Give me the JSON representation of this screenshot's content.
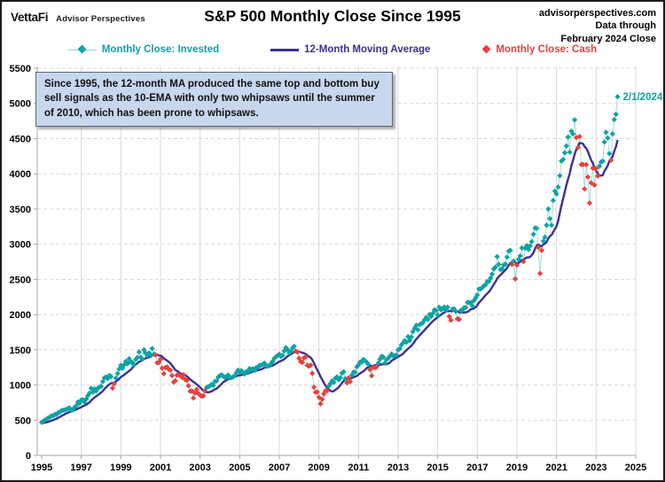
{
  "header": {
    "logo_primary": "VettaFi",
    "logo_secondary": "Advisor Perspectives",
    "title": "S&P 500 Monthly Close Since 1995",
    "source_lines": [
      "advisorperspectives.com",
      "Data through",
      "February 2024 Close"
    ]
  },
  "legend": [
    {
      "label": "Monthly Close: Invested",
      "color": "#0FA3A3",
      "marker": "diamond-line"
    },
    {
      "label": "12-Month Moving Average",
      "color": "#3B3192",
      "marker": "line"
    },
    {
      "label": "Monthly Close: Cash",
      "color": "#E8413C",
      "marker": "diamond"
    }
  ],
  "annotation": {
    "text": "Since 1995, the 12-month MA produced the same top and bottom buy sell signals as the 10-EMA with only two whipsaws until the summer of 2010, which has been prone to whipsaws."
  },
  "callout": {
    "label": "2/1/2024",
    "month": "2024-02",
    "value": 5096
  },
  "chart_data": {
    "type": "line",
    "title": "S&P 500 Monthly Close Since 1995",
    "xlabel": "",
    "ylabel": "",
    "xlim": [
      1995,
      2025
    ],
    "ylim": [
      0,
      5500
    ],
    "grid": true,
    "legend_position": "top",
    "x_ticks": [
      1995,
      1997,
      1999,
      2001,
      2003,
      2005,
      2007,
      2009,
      2011,
      2013,
      2015,
      2017,
      2019,
      2021,
      2023,
      2025
    ],
    "y_ticks": [
      0,
      500,
      1000,
      1500,
      2000,
      2500,
      3000,
      3500,
      4000,
      4500,
      5000,
      5500
    ],
    "series": [
      {
        "name": "Monthly Close: Invested",
        "type": "scatter-line",
        "marker": "diamond"
      },
      {
        "name": "12-Month Moving Average",
        "type": "line"
      },
      {
        "name": "Monthly Close: Cash",
        "type": "scatter",
        "marker": "diamond"
      }
    ],
    "start_year": 1995,
    "start_month": 1,
    "closes_by_year": {
      "1995": [
        470,
        487,
        501,
        515,
        533,
        545,
        562,
        562,
        584,
        582,
        605,
        616
      ],
      "1996": [
        636,
        640,
        646,
        654,
        669,
        671,
        640,
        652,
        687,
        705,
        757,
        741
      ],
      "1997": [
        786,
        791,
        757,
        801,
        848,
        885,
        954,
        899,
        947,
        915,
        955,
        970
      ],
      "1998": [
        980,
        1049,
        1102,
        1112,
        1091,
        1134,
        1121,
        957,
        1017,
        1099,
        1164,
        1229
      ],
      "1999": [
        1280,
        1238,
        1286,
        1335,
        1302,
        1373,
        1329,
        1320,
        1283,
        1363,
        1389,
        1469
      ],
      "2000": [
        1394,
        1366,
        1499,
        1452,
        1421,
        1455,
        1431,
        1518,
        1437,
        1429,
        1315,
        1320
      ],
      "2001": [
        1366,
        1240,
        1160,
        1249,
        1256,
        1224,
        1211,
        1134,
        1041,
        1060,
        1139,
        1148
      ],
      "2002": [
        1130,
        1107,
        1147,
        1077,
        1067,
        990,
        912,
        916,
        815,
        886,
        936,
        880
      ],
      "2003": [
        856,
        841,
        848,
        917,
        964,
        975,
        990,
        1008,
        996,
        1051,
        1058,
        1112
      ],
      "2004": [
        1131,
        1145,
        1126,
        1107,
        1121,
        1141,
        1102,
        1104,
        1115,
        1130,
        1174,
        1212
      ],
      "2005": [
        1181,
        1204,
        1181,
        1157,
        1192,
        1191,
        1234,
        1220,
        1229,
        1207,
        1249,
        1248
      ],
      "2006": [
        1280,
        1281,
        1295,
        1311,
        1270,
        1270,
        1277,
        1304,
        1336,
        1378,
        1401,
        1418
      ],
      "2007": [
        1438,
        1407,
        1421,
        1482,
        1531,
        1503,
        1455,
        1474,
        1527,
        1549,
        1481,
        1468
      ],
      "2008": [
        1379,
        1331,
        1323,
        1386,
        1400,
        1280,
        1267,
        1283,
        1166,
        969,
        896,
        903
      ],
      "2009": [
        826,
        735,
        798,
        873,
        919,
        919,
        987,
        1021,
        1057,
        1036,
        1096,
        1115
      ],
      "2010": [
        1074,
        1104,
        1169,
        1187,
        1089,
        1031,
        1102,
        1049,
        1141,
        1183,
        1181,
        1258
      ],
      "2011": [
        1286,
        1327,
        1326,
        1364,
        1345,
        1321,
        1292,
        1219,
        1131,
        1253,
        1247,
        1258
      ],
      "2012": [
        1312,
        1366,
        1408,
        1398,
        1310,
        1362,
        1379,
        1407,
        1441,
        1412,
        1416,
        1426
      ],
      "2013": [
        1498,
        1515,
        1569,
        1598,
        1631,
        1606,
        1686,
        1633,
        1682,
        1757,
        1806,
        1848
      ],
      "2014": [
        1783,
        1859,
        1872,
        1884,
        1924,
        1960,
        1931,
        2003,
        1972,
        2018,
        2068,
        2059
      ],
      "2015": [
        1995,
        2105,
        2068,
        2086,
        2107,
        2063,
        2104,
        1972,
        1920,
        2079,
        2080,
        2044
      ],
      "2016": [
        1940,
        1932,
        2060,
        2065,
        2097,
        2099,
        2174,
        2171,
        2168,
        2126,
        2199,
        2239
      ],
      "2017": [
        2279,
        2364,
        2363,
        2384,
        2412,
        2423,
        2470,
        2472,
        2519,
        2575,
        2648,
        2674
      ],
      "2018": [
        2824,
        2714,
        2641,
        2648,
        2705,
        2718,
        2816,
        2902,
        2914,
        2712,
        2760,
        2507
      ],
      "2019": [
        2704,
        2785,
        2834,
        2946,
        2752,
        2942,
        2980,
        2926,
        2977,
        3038,
        3141,
        3231
      ],
      "2020": [
        3226,
        2954,
        2585,
        2912,
        3044,
        3100,
        3271,
        3500,
        3363,
        3270,
        3622,
        3756
      ],
      "2021": [
        3714,
        3811,
        3973,
        4181,
        4204,
        4298,
        4395,
        4523,
        4308,
        4605,
        4567,
        4766
      ],
      "2022": [
        4516,
        4374,
        4530,
        4132,
        4132,
        3785,
        4130,
        3955,
        3586,
        3872,
        4080,
        3840
      ],
      "2023": [
        4077,
        3970,
        4109,
        4169,
        4180,
        4450,
        4589,
        4508,
        4288,
        4194,
        4568,
        4770
      ],
      "2024": [
        4846,
        5096
      ]
    },
    "ma_seed_1994": [
      481,
      467,
      445,
      450,
      456,
      444,
      458,
      475,
      462,
      472,
      453,
      459
    ],
    "cash_periods": [
      [
        "1998-08",
        "1998-09"
      ],
      [
        "2000-10",
        "2003-04"
      ],
      [
        "2007-11",
        "2009-06"
      ],
      [
        "2010-06",
        "2010-08"
      ],
      [
        "2011-08",
        "2011-12"
      ],
      [
        "2015-08",
        "2015-09"
      ],
      [
        "2016-01",
        "2016-02"
      ],
      [
        "2018-10",
        "2018-10"
      ],
      [
        "2018-12",
        "2019-01"
      ],
      [
        "2019-05",
        "2019-05"
      ],
      [
        "2020-02",
        "2020-04"
      ],
      [
        "2022-01",
        "2023-02"
      ],
      [
        "2023-10",
        "2023-10"
      ]
    ],
    "colors": {
      "invested": "#0FA3A3",
      "cash": "#E8413C",
      "ma": "#3B3192",
      "connector": "#A9DBDC",
      "grid": "#D9D9D9",
      "axis": "#A9A9A9",
      "text": "#000000"
    }
  }
}
